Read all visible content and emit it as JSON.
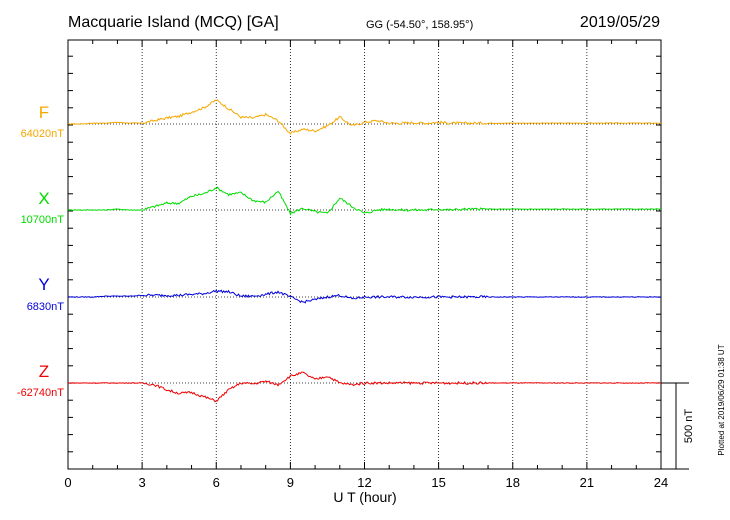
{
  "header": {
    "title": "Macquarie Island (MCQ)  [GA]",
    "coordinates": "GG (-54.50°, 158.95°)",
    "date": "2019/05/29"
  },
  "footer": {
    "plotted_note": "Plotted at 2019/06/29 01:38 UT",
    "scale_label": "500 nT"
  },
  "chart_data": {
    "type": "line",
    "title": "Macquarie Island (MCQ)  [GA]",
    "xlabel": "U T (hour)",
    "ylabel": "",
    "xlim": [
      0,
      24
    ],
    "x_ticks": [
      0,
      3,
      6,
      9,
      12,
      15,
      18,
      21,
      24
    ],
    "scale_bar_nT": 500,
    "grid": true,
    "legend": "left",
    "x": [
      0,
      0.5,
      1,
      1.5,
      2,
      2.5,
      3,
      3.5,
      4,
      4.5,
      5,
      5.5,
      6,
      6.5,
      7,
      7.5,
      8,
      8.5,
      9,
      9.5,
      10,
      10.5,
      11,
      11.5,
      12,
      12.5,
      13,
      13.5,
      14,
      14.5,
      15,
      15.5,
      16,
      16.5,
      17,
      17.5,
      18,
      18.5,
      19,
      19.5,
      20,
      20.5,
      21,
      21.5,
      22,
      22.5,
      23,
      23.5,
      24
    ],
    "series": [
      {
        "name": "F",
        "baseline": "64020nT",
        "color": "#f5a800",
        "values": [
          0,
          0,
          5,
          5,
          10,
          5,
          5,
          20,
          35,
          45,
          70,
          95,
          140,
          90,
          40,
          35,
          55,
          20,
          -55,
          -30,
          -40,
          -10,
          40,
          -10,
          10,
          20,
          5,
          5,
          8,
          5,
          10,
          5,
          5,
          5,
          5,
          5,
          5,
          5,
          5,
          5,
          5,
          5,
          5,
          5,
          5,
          5,
          5,
          5,
          5
        ]
      },
      {
        "name": "X",
        "baseline": "10700nT",
        "color": "#00dd00",
        "values": [
          0,
          0,
          0,
          0,
          5,
          0,
          0,
          20,
          40,
          40,
          80,
          95,
          130,
          90,
          100,
          55,
          45,
          110,
          -20,
          10,
          -10,
          -20,
          70,
          20,
          -20,
          0,
          5,
          0,
          0,
          0,
          5,
          0,
          5,
          5,
          5,
          5,
          5,
          5,
          5,
          5,
          5,
          5,
          5,
          5,
          5,
          5,
          5,
          5,
          5
        ]
      },
      {
        "name": "Y",
        "baseline": "6830nT",
        "color": "#0000dd",
        "values": [
          0,
          0,
          0,
          5,
          5,
          5,
          10,
          10,
          10,
          10,
          15,
          20,
          35,
          30,
          5,
          5,
          15,
          30,
          0,
          -30,
          -15,
          0,
          10,
          -10,
          0,
          0,
          0,
          0,
          0,
          0,
          0,
          0,
          0,
          0,
          0,
          0,
          0,
          0,
          0,
          0,
          0,
          0,
          0,
          0,
          0,
          0,
          0,
          0,
          0
        ]
      },
      {
        "name": "Z",
        "baseline": "-62740nT",
        "color": "#ee0000",
        "values": [
          0,
          0,
          0,
          0,
          0,
          0,
          0,
          -10,
          -40,
          -60,
          -55,
          -80,
          -105,
          -40,
          0,
          -5,
          10,
          -10,
          40,
          60,
          20,
          40,
          0,
          -10,
          0,
          0,
          0,
          0,
          0,
          0,
          0,
          0,
          0,
          0,
          0,
          0,
          0,
          0,
          0,
          0,
          0,
          0,
          0,
          0,
          0,
          0,
          0,
          0,
          0
        ]
      }
    ]
  }
}
